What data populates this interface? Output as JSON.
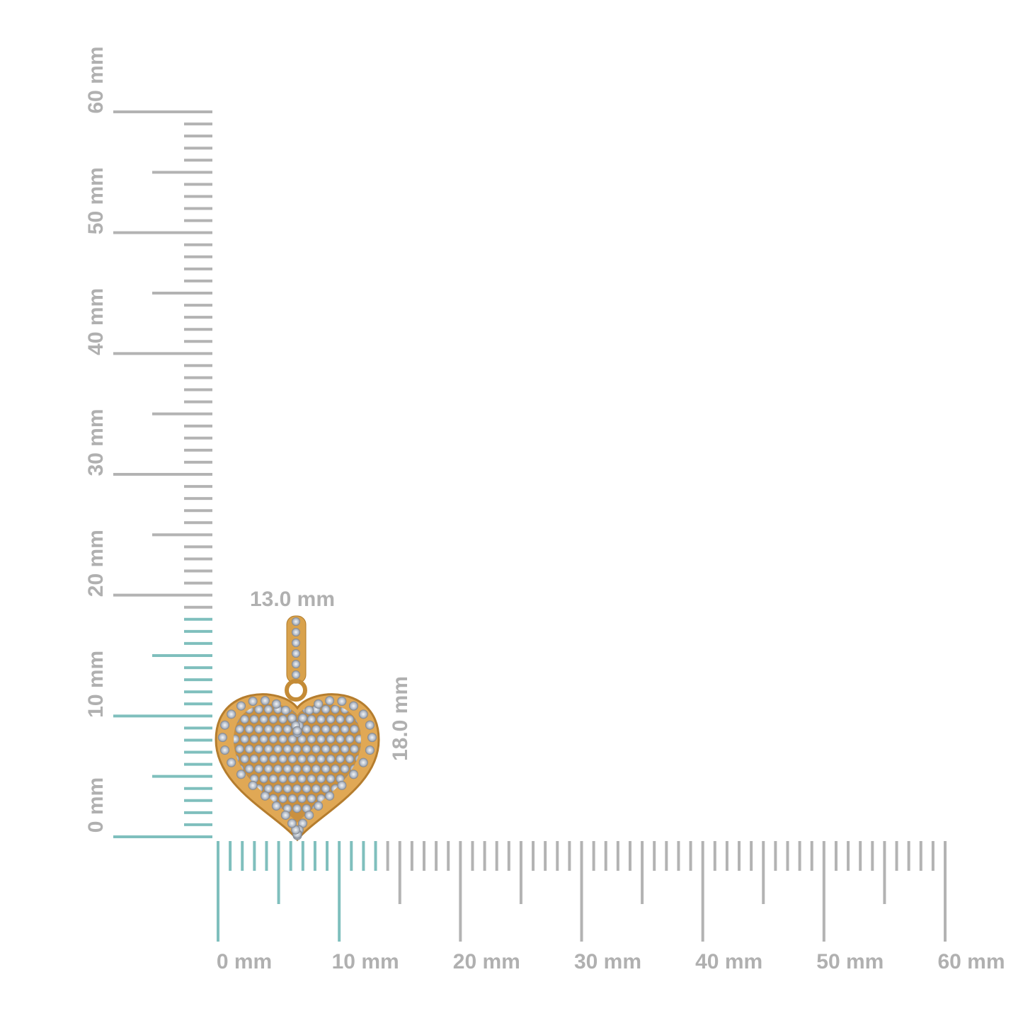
{
  "vertical_ruler": {
    "labels": [
      "0 mm",
      "10 mm",
      "20 mm",
      "30 mm",
      "40 mm",
      "50 mm",
      "60 mm"
    ]
  },
  "horizontal_ruler": {
    "labels": [
      "0 mm",
      "10 mm",
      "20 mm",
      "30 mm",
      "40 mm",
      "50 mm",
      "60 mm"
    ]
  },
  "dimensions": {
    "width": "13.0 mm",
    "height": "18.0 mm"
  }
}
